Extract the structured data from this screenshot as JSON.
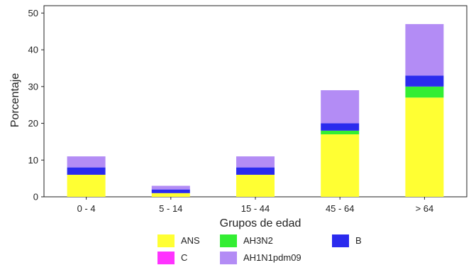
{
  "chart_data": {
    "type": "bar",
    "stacked": true,
    "categories": [
      "0 - 4",
      "5 - 14",
      "15 - 44",
      "45 - 64",
      "> 64"
    ],
    "series": [
      {
        "name": "ANS",
        "color": "#ffff33",
        "values": [
          6,
          1,
          6,
          17,
          27
        ]
      },
      {
        "name": "AH3N2",
        "color": "#33ee33",
        "values": [
          0,
          0,
          0,
          1,
          3
        ]
      },
      {
        "name": "B",
        "color": "#2b2bee",
        "values": [
          2,
          1,
          2,
          2,
          3
        ]
      },
      {
        "name": "C",
        "color": "#ff33ff",
        "values": [
          0,
          0,
          0,
          0,
          0
        ]
      },
      {
        "name": "AH1N1pdm09",
        "color": "#b38cf5",
        "values": [
          3,
          1,
          3,
          9,
          14
        ]
      }
    ],
    "title": "",
    "xlabel": "Grupos de edad",
    "ylabel": "Porcentaje",
    "ylim": [
      0,
      52
    ],
    "yticks": [
      0,
      10,
      20,
      30,
      40,
      50
    ],
    "grid": false,
    "legend_position": "bottom"
  }
}
